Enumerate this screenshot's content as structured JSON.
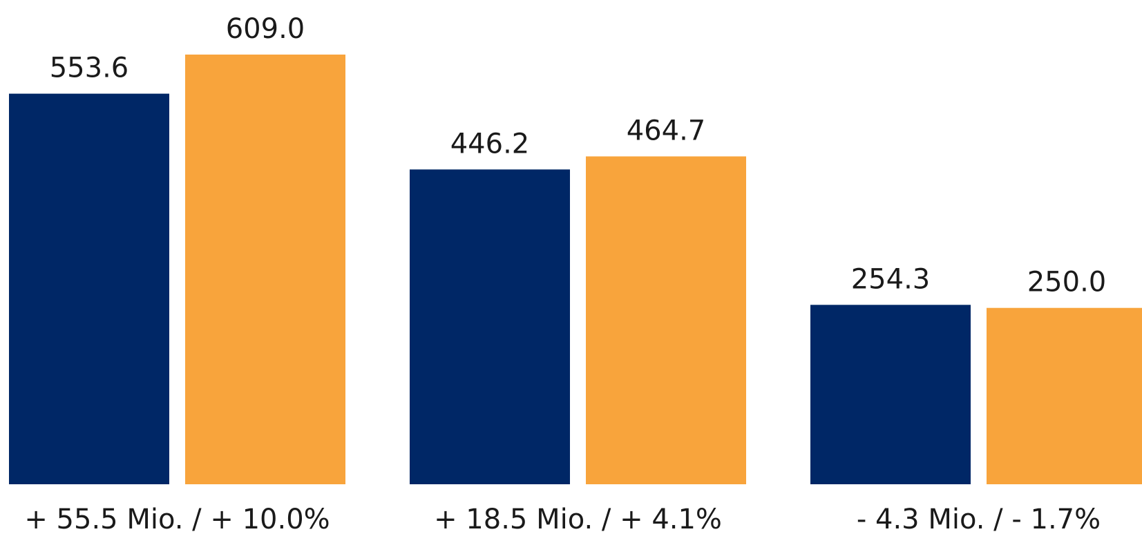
{
  "chart_data": {
    "type": "bar",
    "categories": [
      "+ 55.5 Mio. / + 10.0%",
      "+ 18.5 Mio. / + 4.1%",
      "- 4.3 Mio. / - 1.7%"
    ],
    "series": [
      {
        "values": [
          553.6,
          446.2,
          254.3
        ],
        "labels": [
          "553.6",
          "446.2",
          "254.3"
        ],
        "color": "#002766"
      },
      {
        "values": [
          609.0,
          464.7,
          250.0
        ],
        "labels": [
          "609.0",
          "464.7",
          "250.0"
        ],
        "color": "#F8A43C"
      }
    ],
    "title": "",
    "xlabel": "",
    "ylabel": "",
    "ylim": [
      0,
      609.0
    ],
    "grid": false,
    "legend": "none"
  }
}
